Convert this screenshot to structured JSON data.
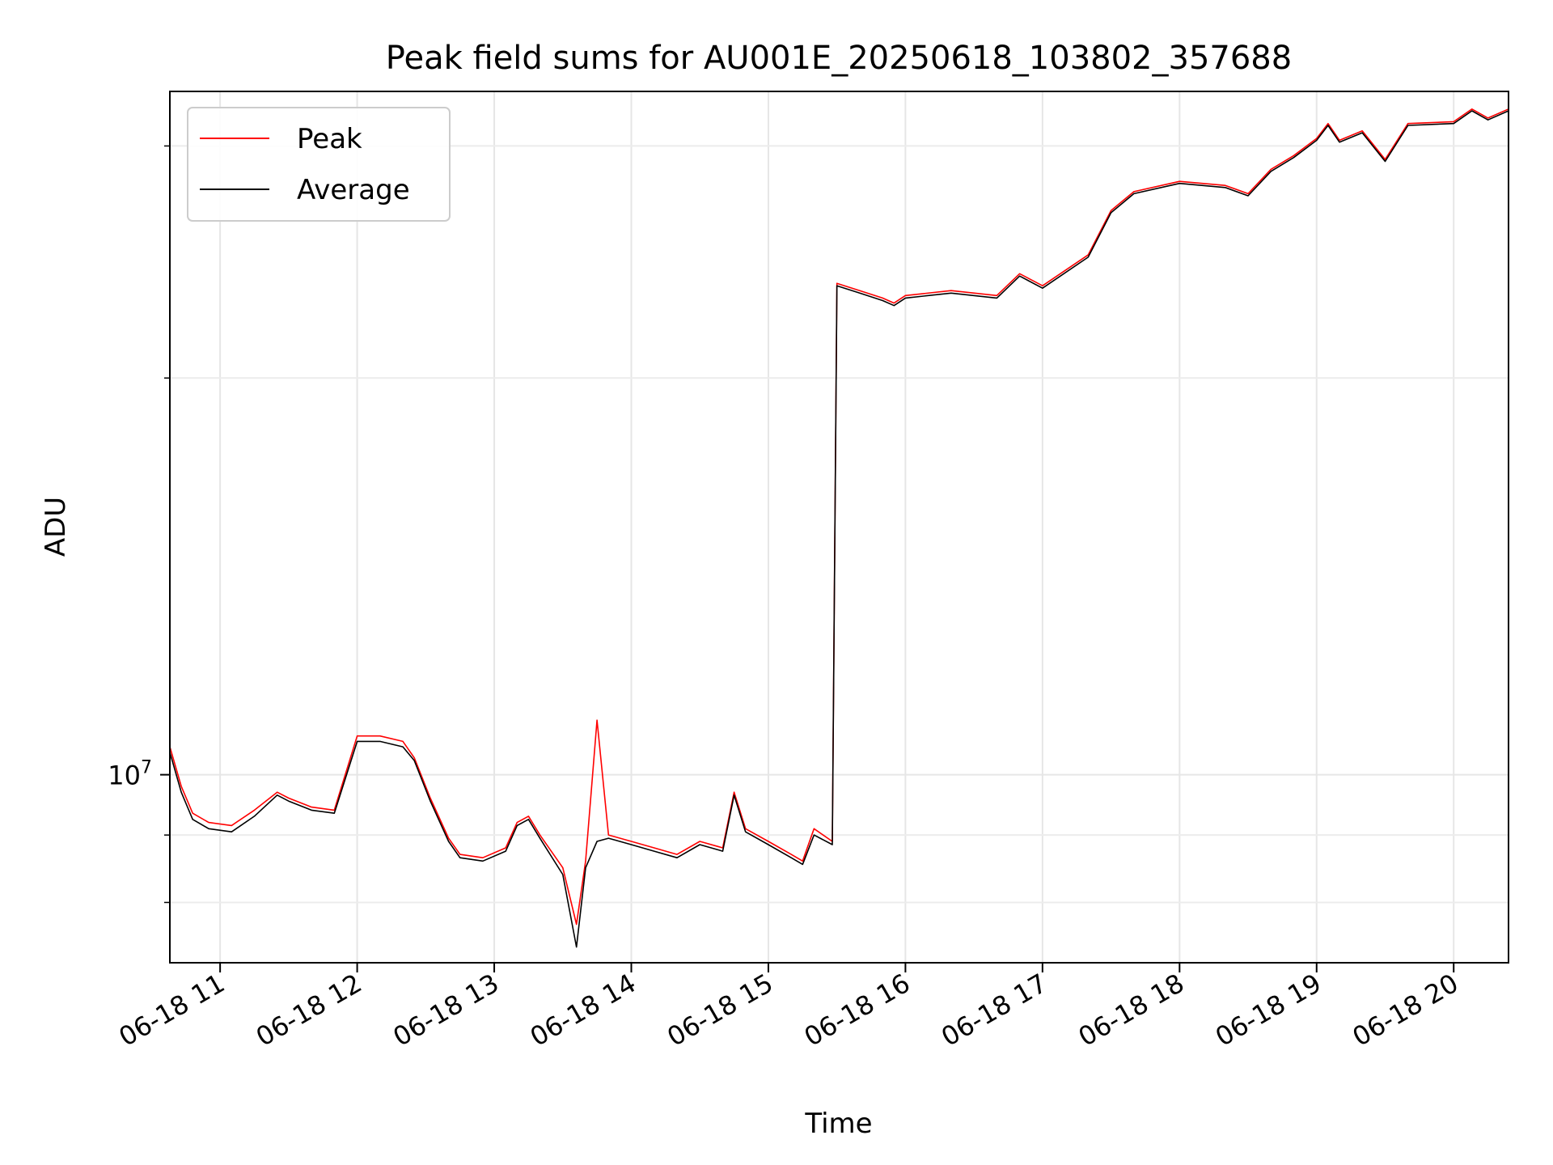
{
  "chart_data": {
    "type": "line",
    "title": "Peak field sums for AU001E_20250618_103802_357688",
    "xlabel": "Time",
    "ylabel": "ADU",
    "y_scale": "log",
    "ylim": [
      7200000,
      33000000
    ],
    "y_major_ticks": [
      {
        "value": 10000000,
        "label": "10",
        "exponent": "7"
      }
    ],
    "y_minor_ticks": [
      8000000,
      9000000,
      20000000,
      30000000
    ],
    "xlim": [
      "2025-06-18 10:38",
      "2025-06-18 20:24"
    ],
    "x_ticks": [
      {
        "value": "2025-06-18 11:00",
        "label": "06-18 11"
      },
      {
        "value": "2025-06-18 12:00",
        "label": "06-18 12"
      },
      {
        "value": "2025-06-18 13:00",
        "label": "06-18 13"
      },
      {
        "value": "2025-06-18 14:00",
        "label": "06-18 14"
      },
      {
        "value": "2025-06-18 15:00",
        "label": "06-18 15"
      },
      {
        "value": "2025-06-18 16:00",
        "label": "06-18 16"
      },
      {
        "value": "2025-06-18 17:00",
        "label": "06-18 17"
      },
      {
        "value": "2025-06-18 18:00",
        "label": "06-18 18"
      },
      {
        "value": "2025-06-18 19:00",
        "label": "06-18 19"
      },
      {
        "value": "2025-06-18 20:00",
        "label": "06-18 20"
      }
    ],
    "grid": true,
    "legend_position": "top-left",
    "x_format": "YYYY-MM-DD HH:MM",
    "series": [
      {
        "name": "Peak",
        "color": "#ff0000",
        "x": [
          "2025-06-18 10:38",
          "2025-06-18 10:43",
          "2025-06-18 10:48",
          "2025-06-18 10:55",
          "2025-06-18 11:05",
          "2025-06-18 11:15",
          "2025-06-18 11:25",
          "2025-06-18 11:30",
          "2025-06-18 11:40",
          "2025-06-18 11:50",
          "2025-06-18 12:00",
          "2025-06-18 12:10",
          "2025-06-18 12:20",
          "2025-06-18 12:25",
          "2025-06-18 12:32",
          "2025-06-18 12:40",
          "2025-06-18 12:45",
          "2025-06-18 12:55",
          "2025-06-18 13:05",
          "2025-06-18 13:10",
          "2025-06-18 13:15",
          "2025-06-18 13:20",
          "2025-06-18 13:30",
          "2025-06-18 13:36",
          "2025-06-18 13:40",
          "2025-06-18 13:45",
          "2025-06-18 13:50",
          "2025-06-18 14:00",
          "2025-06-18 14:10",
          "2025-06-18 14:20",
          "2025-06-18 14:30",
          "2025-06-18 14:40",
          "2025-06-18 14:45",
          "2025-06-18 14:50",
          "2025-06-18 15:00",
          "2025-06-18 15:10",
          "2025-06-18 15:15",
          "2025-06-18 15:20",
          "2025-06-18 15:28",
          "2025-06-18 15:30",
          "2025-06-18 15:40",
          "2025-06-18 15:50",
          "2025-06-18 15:55",
          "2025-06-18 16:00",
          "2025-06-18 16:20",
          "2025-06-18 16:40",
          "2025-06-18 16:50",
          "2025-06-18 17:00",
          "2025-06-18 17:20",
          "2025-06-18 17:30",
          "2025-06-18 17:40",
          "2025-06-18 18:00",
          "2025-06-18 18:20",
          "2025-06-18 18:30",
          "2025-06-18 18:40",
          "2025-06-18 18:50",
          "2025-06-18 19:00",
          "2025-06-18 19:05",
          "2025-06-18 19:10",
          "2025-06-18 19:20",
          "2025-06-18 19:30",
          "2025-06-18 19:40",
          "2025-06-18 20:00",
          "2025-06-18 20:08",
          "2025-06-18 20:15",
          "2025-06-18 20:24"
        ],
        "y": [
          10500000,
          9800000,
          9350000,
          9200000,
          9150000,
          9400000,
          9700000,
          9600000,
          9450000,
          9400000,
          10700000,
          10700000,
          10600000,
          10300000,
          9600000,
          8950000,
          8700000,
          8650000,
          8800000,
          9200000,
          9300000,
          9000000,
          8500000,
          7700000,
          8600000,
          11000000,
          9000000,
          8900000,
          8800000,
          8700000,
          8900000,
          8800000,
          9700000,
          9100000,
          8900000,
          8700000,
          8600000,
          9100000,
          8900000,
          23600000,
          23300000,
          23000000,
          22800000,
          23100000,
          23300000,
          23100000,
          24000000,
          23500000,
          24800000,
          26800000,
          27700000,
          28200000,
          28000000,
          27600000,
          28800000,
          29500000,
          30400000,
          31200000,
          30300000,
          30800000,
          29300000,
          31200000,
          31300000,
          32000000,
          31500000,
          32000000
        ]
      },
      {
        "name": "Average",
        "color": "#000000",
        "x": [
          "2025-06-18 10:38",
          "2025-06-18 10:43",
          "2025-06-18 10:48",
          "2025-06-18 10:55",
          "2025-06-18 11:05",
          "2025-06-18 11:15",
          "2025-06-18 11:25",
          "2025-06-18 11:30",
          "2025-06-18 11:40",
          "2025-06-18 11:50",
          "2025-06-18 12:00",
          "2025-06-18 12:10",
          "2025-06-18 12:20",
          "2025-06-18 12:25",
          "2025-06-18 12:32",
          "2025-06-18 12:40",
          "2025-06-18 12:45",
          "2025-06-18 12:55",
          "2025-06-18 13:05",
          "2025-06-18 13:10",
          "2025-06-18 13:15",
          "2025-06-18 13:20",
          "2025-06-18 13:30",
          "2025-06-18 13:36",
          "2025-06-18 13:40",
          "2025-06-18 13:45",
          "2025-06-18 13:50",
          "2025-06-18 14:00",
          "2025-06-18 14:10",
          "2025-06-18 14:20",
          "2025-06-18 14:30",
          "2025-06-18 14:40",
          "2025-06-18 14:45",
          "2025-06-18 14:50",
          "2025-06-18 15:00",
          "2025-06-18 15:10",
          "2025-06-18 15:15",
          "2025-06-18 15:20",
          "2025-06-18 15:28",
          "2025-06-18 15:30",
          "2025-06-18 15:40",
          "2025-06-18 15:50",
          "2025-06-18 15:55",
          "2025-06-18 16:00",
          "2025-06-18 16:20",
          "2025-06-18 16:40",
          "2025-06-18 16:50",
          "2025-06-18 17:00",
          "2025-06-18 17:20",
          "2025-06-18 17:30",
          "2025-06-18 17:40",
          "2025-06-18 18:00",
          "2025-06-18 18:20",
          "2025-06-18 18:30",
          "2025-06-18 18:40",
          "2025-06-18 18:50",
          "2025-06-18 19:00",
          "2025-06-18 19:05",
          "2025-06-18 19:10",
          "2025-06-18 19:20",
          "2025-06-18 19:30",
          "2025-06-18 19:40",
          "2025-06-18 20:00",
          "2025-06-18 20:08",
          "2025-06-18 20:15",
          "2025-06-18 20:24"
        ],
        "y": [
          10400000,
          9700000,
          9250000,
          9100000,
          9050000,
          9300000,
          9650000,
          9550000,
          9400000,
          9350000,
          10600000,
          10600000,
          10500000,
          10250000,
          9550000,
          8900000,
          8650000,
          8600000,
          8750000,
          9150000,
          9250000,
          8950000,
          8400000,
          7400000,
          8500000,
          8900000,
          8950000,
          8850000,
          8750000,
          8650000,
          8850000,
          8750000,
          9650000,
          9050000,
          8850000,
          8650000,
          8550000,
          9000000,
          8850000,
          23500000,
          23200000,
          22900000,
          22700000,
          23000000,
          23200000,
          23000000,
          23900000,
          23400000,
          24700000,
          26700000,
          27600000,
          28100000,
          27900000,
          27500000,
          28700000,
          29400000,
          30300000,
          31100000,
          30200000,
          30700000,
          29200000,
          31100000,
          31200000,
          31900000,
          31400000,
          31900000
        ]
      }
    ]
  }
}
